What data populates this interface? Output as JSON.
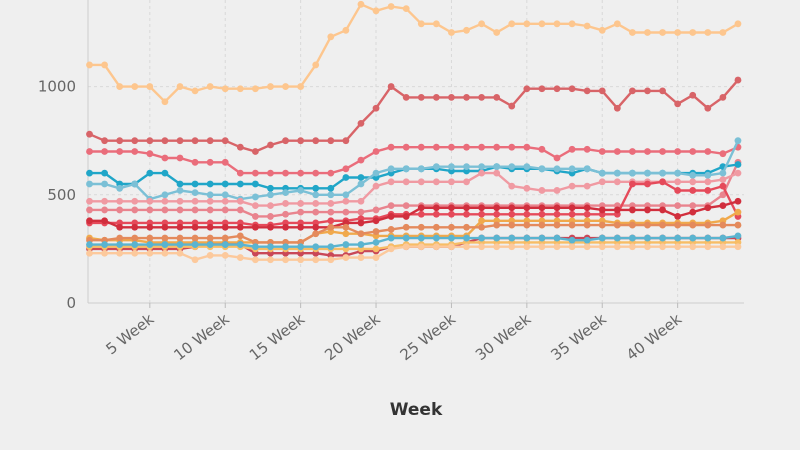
{
  "chart_data": {
    "type": "line",
    "title": "",
    "xlabel": "Week",
    "ylabel": "",
    "x": [
      1,
      2,
      3,
      4,
      5,
      6,
      7,
      8,
      9,
      10,
      11,
      12,
      13,
      14,
      15,
      16,
      17,
      18,
      19,
      20,
      21,
      22,
      23,
      24,
      25,
      26,
      27,
      28,
      29,
      30,
      31,
      32,
      33,
      34,
      35,
      36,
      37,
      38,
      39,
      40,
      41,
      42,
      43,
      44
    ],
    "x_tick_values": [
      5,
      10,
      15,
      20,
      25,
      30,
      35,
      40
    ],
    "x_tick_labels": [
      "5 Week",
      "10 Week",
      "15 Week",
      "20 Week",
      "25 Week",
      "30 Week",
      "35 Week",
      "40 Week"
    ],
    "y_ticks": [
      0,
      500,
      1000
    ],
    "xlim": [
      0.9,
      44.4
    ],
    "ylim": [
      0,
      1400
    ],
    "grid": true,
    "legend": "none",
    "series": [
      {
        "color": "#fdc68e",
        "values": [
          1100,
          1100,
          1000,
          1000,
          1000,
          930,
          1000,
          980,
          1000,
          990,
          990,
          990,
          1000,
          1000,
          1000,
          1100,
          1230,
          1260,
          1380,
          1350,
          1370,
          1360,
          1290,
          1290,
          1250,
          1260,
          1290,
          1250,
          1290,
          1290,
          1290,
          1290,
          1290,
          1280,
          1260,
          1290,
          1250,
          1250,
          1250,
          1250,
          1250,
          1250,
          1250,
          1290
        ]
      },
      {
        "color": "#d86468",
        "values": [
          780,
          750,
          750,
          750,
          750,
          750,
          750,
          750,
          750,
          750,
          720,
          700,
          730,
          750,
          750,
          750,
          750,
          750,
          830,
          900,
          1000,
          950,
          950,
          950,
          950,
          950,
          950,
          950,
          910,
          990,
          990,
          990,
          990,
          980,
          980,
          900,
          980,
          980,
          980,
          920,
          960,
          900,
          950,
          1030
        ]
      },
      {
        "color": "#ea6d7b",
        "values": [
          700,
          700,
          700,
          700,
          690,
          670,
          670,
          650,
          650,
          650,
          600,
          600,
          600,
          600,
          600,
          600,
          600,
          620,
          660,
          700,
          720,
          720,
          720,
          720,
          720,
          720,
          720,
          720,
          720,
          720,
          710,
          670,
          710,
          710,
          700,
          700,
          700,
          700,
          700,
          700,
          700,
          700,
          690,
          720
        ]
      },
      {
        "color": "#e9848e",
        "values": [
          430,
          430,
          430,
          430,
          430,
          430,
          430,
          430,
          430,
          430,
          430,
          400,
          400,
          410,
          420,
          420,
          420,
          420,
          420,
          430,
          450,
          450,
          450,
          450,
          450,
          450,
          450,
          450,
          450,
          450,
          450,
          450,
          450,
          450,
          450,
          450,
          450,
          450,
          450,
          450,
          450,
          450,
          500,
          650
        ]
      },
      {
        "color": "#20a6c8",
        "values": [
          600,
          600,
          550,
          550,
          600,
          600,
          550,
          550,
          550,
          550,
          550,
          550,
          530,
          530,
          530,
          530,
          530,
          580,
          580,
          580,
          600,
          620,
          620,
          620,
          610,
          610,
          610,
          630,
          620,
          620,
          620,
          610,
          600,
          620,
          600,
          600,
          600,
          600,
          600,
          600,
          600,
          600,
          630,
          640
        ]
      },
      {
        "color": "#7bc0d6",
        "values": [
          550,
          550,
          530,
          550,
          480,
          500,
          520,
          510,
          500,
          500,
          480,
          490,
          500,
          510,
          520,
          500,
          500,
          500,
          550,
          600,
          620,
          620,
          620,
          630,
          630,
          630,
          630,
          630,
          630,
          630,
          620,
          620,
          620,
          620,
          600,
          600,
          600,
          600,
          600,
          600,
          590,
          590,
          600,
          750
        ]
      },
      {
        "color": "#f09aa2",
        "values": [
          470,
          470,
          470,
          470,
          470,
          470,
          470,
          470,
          470,
          470,
          470,
          450,
          450,
          460,
          460,
          460,
          460,
          470,
          470,
          540,
          560,
          560,
          560,
          560,
          560,
          560,
          600,
          600,
          540,
          530,
          520,
          520,
          540,
          540,
          560,
          560,
          560,
          560,
          560,
          560,
          560,
          560,
          570,
          600
        ]
      },
      {
        "color": "#e54a5a",
        "values": [
          370,
          370,
          370,
          370,
          370,
          370,
          370,
          370,
          370,
          370,
          370,
          360,
          360,
          370,
          370,
          370,
          380,
          380,
          390,
          390,
          410,
          410,
          410,
          410,
          410,
          410,
          410,
          410,
          410,
          410,
          410,
          410,
          410,
          410,
          410,
          410,
          550,
          550,
          560,
          520,
          520,
          520,
          540,
          400
        ]
      },
      {
        "color": "#d12e3d",
        "values": [
          380,
          380,
          350,
          350,
          350,
          350,
          350,
          350,
          350,
          350,
          350,
          350,
          350,
          350,
          350,
          350,
          350,
          370,
          370,
          380,
          400,
          400,
          440,
          440,
          440,
          440,
          440,
          440,
          440,
          440,
          440,
          440,
          440,
          440,
          430,
          430,
          430,
          430,
          430,
          400,
          420,
          440,
          450,
          470
        ]
      },
      {
        "color": "#f0a94c",
        "values": [
          300,
          290,
          290,
          290,
          280,
          280,
          280,
          280,
          280,
          280,
          280,
          280,
          280,
          280,
          280,
          320,
          330,
          320,
          320,
          310,
          310,
          310,
          310,
          310,
          310,
          310,
          380,
          380,
          380,
          380,
          380,
          380,
          380,
          380,
          380,
          370,
          370,
          370,
          370,
          370,
          370,
          370,
          380,
          420
        ]
      },
      {
        "color": "#e48a5c",
        "values": [
          290,
          290,
          300,
          300,
          300,
          300,
          300,
          300,
          300,
          300,
          310,
          280,
          280,
          280,
          280,
          320,
          350,
          350,
          320,
          330,
          340,
          350,
          350,
          350,
          350,
          350,
          350,
          360,
          360,
          360,
          360,
          360,
          360,
          360,
          360,
          360,
          360,
          360,
          360,
          360,
          360,
          360,
          360,
          360
        ]
      },
      {
        "color": "#c94757",
        "values": [
          250,
          250,
          250,
          250,
          250,
          250,
          250,
          260,
          270,
          270,
          270,
          230,
          230,
          230,
          230,
          230,
          220,
          220,
          240,
          240,
          260,
          260,
          260,
          260,
          260,
          280,
          300,
          300,
          300,
          300,
          300,
          300,
          300,
          300,
          300,
          300,
          300,
          300,
          300,
          300,
          300,
          300,
          300,
          300
        ]
      },
      {
        "color": "#f7bd66",
        "values": [
          260,
          260,
          260,
          260,
          260,
          260,
          260,
          260,
          260,
          260,
          260,
          250,
          250,
          250,
          250,
          250,
          250,
          250,
          250,
          250,
          260,
          270,
          270,
          270,
          270,
          280,
          280,
          280,
          280,
          280,
          280,
          280,
          280,
          280,
          280,
          280,
          280,
          280,
          280,
          280,
          280,
          280,
          280,
          280
        ]
      },
      {
        "color": "#5ab4d0",
        "values": [
          270,
          270,
          270,
          270,
          270,
          270,
          270,
          270,
          270,
          270,
          270,
          260,
          260,
          260,
          260,
          260,
          260,
          270,
          270,
          280,
          300,
          300,
          300,
          300,
          300,
          300,
          300,
          300,
          300,
          300,
          300,
          300,
          290,
          290,
          300,
          300,
          300,
          300,
          300,
          300,
          300,
          300,
          300,
          310
        ]
      },
      {
        "color": "#fcc99c",
        "values": [
          230,
          230,
          230,
          230,
          230,
          230,
          230,
          200,
          220,
          220,
          210,
          200,
          200,
          200,
          200,
          200,
          200,
          210,
          210,
          210,
          250,
          260,
          260,
          260,
          260,
          260,
          260,
          260,
          260,
          260,
          260,
          260,
          260,
          260,
          260,
          260,
          260,
          260,
          260,
          260,
          260,
          260,
          260,
          260
        ]
      }
    ]
  }
}
